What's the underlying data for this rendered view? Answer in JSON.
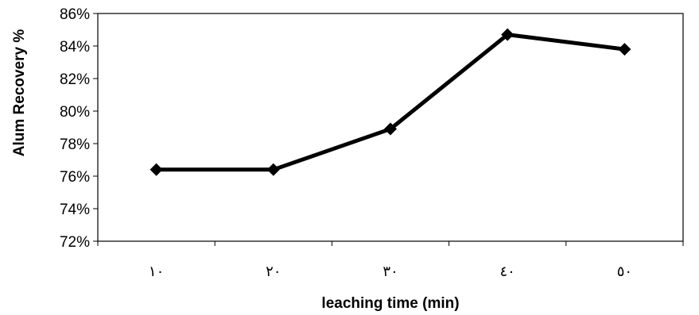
{
  "chart_data": {
    "type": "line",
    "title": "",
    "xlabel": "leaching time (min)",
    "ylabel": "Alum Recovery %",
    "categories": [
      "١٠",
      "٢٠",
      "٣٠",
      "٤٠",
      "٥٠"
    ],
    "series": [
      {
        "values": [
          76.4,
          76.4,
          78.9,
          84.7,
          83.8
        ]
      }
    ],
    "ylim": [
      72,
      86
    ],
    "yticks": [
      72,
      74,
      76,
      78,
      80,
      82,
      84,
      86
    ],
    "ytick_labels": [
      "72%",
      "74%",
      "76%",
      "78%",
      "80%",
      "82%",
      "84%",
      "86%"
    ],
    "grid": false,
    "legend": "none",
    "colors": {
      "line": "#000000",
      "marker": "#000000",
      "axis": "#000000"
    }
  }
}
